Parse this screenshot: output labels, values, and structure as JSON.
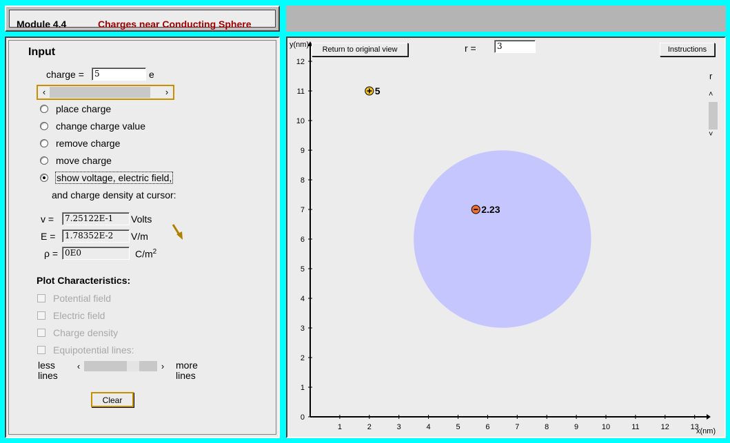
{
  "title": {
    "module": "Module 4.4",
    "name": "Charges near Conducting Sphere"
  },
  "input": {
    "heading": "Input",
    "charge_label": "charge =",
    "charge_value": "5",
    "charge_unit": "e",
    "modes": [
      {
        "label": "place charge",
        "selected": false
      },
      {
        "label": "change charge value",
        "selected": false
      },
      {
        "label": "remove charge",
        "selected": false
      },
      {
        "label": "move charge",
        "selected": false
      },
      {
        "label": "show voltage, electric field,",
        "selected": true
      }
    ],
    "mode_continuation": "and charge density at cursor:",
    "readouts": {
      "v_label": "v =",
      "v_value": "7.25122E-1",
      "v_unit": "Volts",
      "e_label": "E =",
      "e_value": "1.78352E-2",
      "e_unit": "V/m",
      "rho_label": "ρ =",
      "rho_value": "0E0",
      "rho_unit": "C/m",
      "rho_unit_sup": "2"
    }
  },
  "plot_characteristics": {
    "heading": "Plot Characteristics:",
    "options": [
      {
        "label": "Potential field",
        "checked": false
      },
      {
        "label": "Electric field",
        "checked": false
      },
      {
        "label": "Charge density",
        "checked": false
      },
      {
        "label": "Equipotential lines:",
        "checked": false
      }
    ],
    "less_label_1": "less",
    "less_label_2": "lines",
    "more_label_1": "more",
    "more_label_2": "lines",
    "clear_label": "Clear"
  },
  "plot": {
    "return_button": "Return to original view",
    "r_label": "r =",
    "r_value": "3",
    "instructions_button": "Instructions",
    "r_scroll_label": "r",
    "x_axis_label": "x(nm)",
    "y_axis_label": "y(nm)",
    "x_ticks": [
      "1",
      "2",
      "3",
      "4",
      "5",
      "6",
      "7",
      "8",
      "9",
      "10",
      "11",
      "12",
      "13"
    ],
    "y_ticks": [
      "0",
      "1",
      "2",
      "3",
      "4",
      "5",
      "6",
      "7",
      "8",
      "9",
      "10",
      "11",
      "12"
    ],
    "sphere": {
      "cx": 6.5,
      "cy": 6.0,
      "r": 3.0,
      "color": "#c6c6ff"
    },
    "charges": [
      {
        "x": 2.0,
        "y": 11.0,
        "sign": "+",
        "label": "5",
        "color": "#f5c518"
      },
      {
        "x": 5.6,
        "y": 7.0,
        "sign": "-",
        "label": "2.23",
        "color": "#f07030"
      }
    ]
  },
  "colors": {
    "background": "#00ffff",
    "title_red": "#a00000",
    "panel": "#ececec"
  }
}
